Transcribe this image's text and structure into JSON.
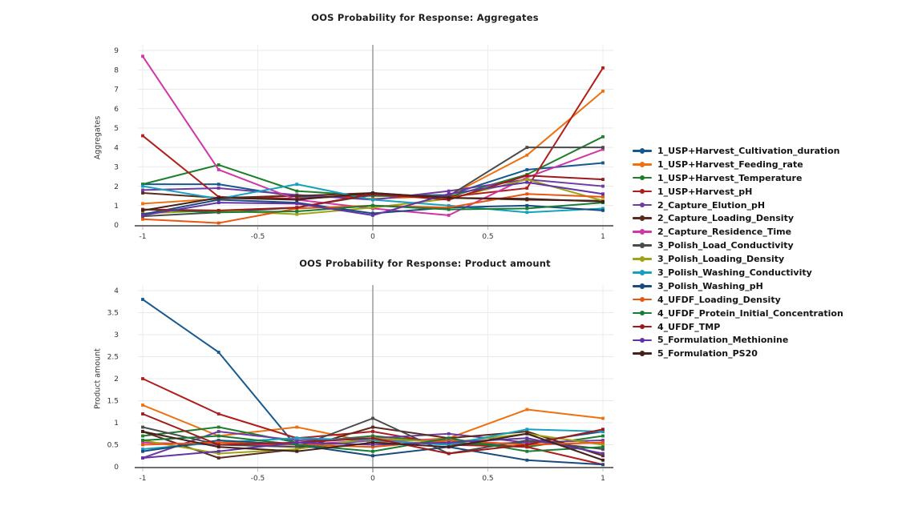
{
  "figure": {
    "background": "#ffffff",
    "grid_color": "#e9e9e9",
    "vgrid_color": "#ececec",
    "axis_color": "#5a5a5a",
    "zero_line_color": "#8c8c8c",
    "tick_text_color": "#333333"
  },
  "chart_data": [
    {
      "type": "line",
      "title": "OOS Probability for Response: Aggregates",
      "xlabel": "",
      "ylabel": "Aggregates",
      "grid": true,
      "legend_position": "right",
      "x": [
        -1,
        -0.67,
        -0.33,
        0,
        0.33,
        0.67,
        1
      ],
      "xticks": [
        -1,
        -0.5,
        0,
        0.5,
        1
      ],
      "xlim": [
        -1.05,
        1.05
      ],
      "ylim": [
        0,
        9
      ],
      "yticks": [
        0,
        1,
        2,
        3,
        4,
        5,
        6,
        7,
        8,
        9
      ],
      "series": [
        {
          "name": "1_USP+Harvest_Cultivation_duration",
          "color": "#17598e",
          "values": [
            2.1,
            2.1,
            1.45,
            1.5,
            1.55,
            2.85,
            3.2
          ]
        },
        {
          "name": "1_USP+Harvest_Feeding_rate",
          "color": "#ee7111",
          "values": [
            1.1,
            1.35,
            1.55,
            1.35,
            1.5,
            3.6,
            6.9
          ]
        },
        {
          "name": "1_USP+Harvest_Temperature",
          "color": "#1f7e2c",
          "values": [
            2.1,
            3.1,
            1.75,
            1.5,
            1.45,
            2.6,
            4.55
          ]
        },
        {
          "name": "1_USP+Harvest_pH",
          "color": "#b01d1d",
          "values": [
            4.6,
            1.45,
            1.35,
            1.55,
            1.45,
            1.9,
            8.1
          ]
        },
        {
          "name": "2_Capture_Elution_pH",
          "color": "#6e3ba2",
          "values": [
            1.8,
            1.9,
            1.55,
            1.3,
            1.75,
            2.35,
            2.0
          ]
        },
        {
          "name": "2_Capture_Loading_Density",
          "color": "#5a2a20",
          "values": [
            1.65,
            1.4,
            1.5,
            1.65,
            1.4,
            1.3,
            1.25
          ]
        },
        {
          "name": "2_Capture_Residence_Time",
          "color": "#d036a4",
          "values": [
            8.7,
            2.85,
            1.3,
            0.85,
            0.5,
            2.45,
            3.9
          ]
        },
        {
          "name": "3_Polish_Load_Conductivity",
          "color": "#4b4b4b",
          "values": [
            0.45,
            0.65,
            0.9,
            1.55,
            1.5,
            4.0,
            4.0
          ]
        },
        {
          "name": "3_Polish_Loading_Density",
          "color": "#9fa414",
          "values": [
            0.6,
            0.75,
            0.55,
            0.9,
            1.35,
            2.35,
            1.25
          ]
        },
        {
          "name": "3_Polish_Washing_Conductivity",
          "color": "#13a1bf",
          "values": [
            2.0,
            1.35,
            2.1,
            1.3,
            1.0,
            0.65,
            0.85
          ]
        },
        {
          "name": "3_Polish_Washing_pH",
          "color": "#1a4b7c",
          "values": [
            0.55,
            1.3,
            1.15,
            0.6,
            0.9,
            1.0,
            0.75
          ]
        },
        {
          "name": "4_UFDF_Loading_Density",
          "color": "#e9560e",
          "values": [
            0.3,
            0.1,
            0.85,
            1.0,
            0.9,
            1.6,
            1.45
          ]
        },
        {
          "name": "4_UFDF_Protein_Initial_Concentration",
          "color": "#177d36",
          "values": [
            0.8,
            0.65,
            0.7,
            1.0,
            0.8,
            0.85,
            1.15
          ]
        },
        {
          "name": "4_UFDF_TMP",
          "color": "#9e1a1a",
          "values": [
            0.8,
            0.75,
            0.9,
            1.6,
            1.3,
            2.55,
            2.35
          ]
        },
        {
          "name": "5_Formulation_Methionine",
          "color": "#6333a6",
          "values": [
            0.5,
            1.15,
            1.1,
            0.5,
            1.6,
            2.2,
            1.6
          ]
        },
        {
          "name": "5_Formulation_PS20",
          "color": "#44211a",
          "values": [
            0.75,
            1.4,
            1.3,
            1.65,
            1.4,
            1.35,
            1.2
          ]
        }
      ]
    },
    {
      "type": "line",
      "title": "OOS Probability for Response: Product amount",
      "xlabel": "",
      "ylabel": "Product amount",
      "grid": true,
      "legend_position": "right",
      "x": [
        -1,
        -0.67,
        -0.33,
        0,
        0.33,
        0.67,
        1
      ],
      "xticks": [
        -1,
        -0.5,
        0,
        0.5,
        1
      ],
      "xlim": [
        -1.05,
        1.05
      ],
      "ylim": [
        0,
        4
      ],
      "yticks": [
        0,
        0.5,
        1,
        1.5,
        2,
        2.5,
        3,
        3.5,
        4
      ],
      "series": [
        {
          "name": "1_USP+Harvest_Cultivation_duration",
          "color": "#17598e",
          "values": [
            3.8,
            2.6,
            0.45,
            0.6,
            0.5,
            0.55,
            0.8
          ]
        },
        {
          "name": "1_USP+Harvest_Feeding_rate",
          "color": "#ee7111",
          "values": [
            1.4,
            0.7,
            0.9,
            0.55,
            0.65,
            1.3,
            1.1
          ]
        },
        {
          "name": "1_USP+Harvest_Temperature",
          "color": "#1f7e2c",
          "values": [
            0.7,
            0.9,
            0.55,
            0.7,
            0.55,
            0.45,
            0.7
          ]
        },
        {
          "name": "1_USP+Harvest_pH",
          "color": "#b01d1d",
          "values": [
            2.0,
            1.2,
            0.65,
            0.8,
            0.5,
            0.45,
            0.05
          ]
        },
        {
          "name": "2_Capture_Elution_pH",
          "color": "#6e3ba2",
          "values": [
            0.2,
            0.8,
            0.6,
            0.65,
            0.75,
            0.55,
            0.6
          ]
        },
        {
          "name": "2_Capture_Loading_Density",
          "color": "#5a2a20",
          "values": [
            0.8,
            0.2,
            0.4,
            0.9,
            0.65,
            0.8,
            0.25
          ]
        },
        {
          "name": "2_Capture_Residence_Time",
          "color": "#d036a4",
          "values": [
            0.55,
            0.5,
            0.5,
            0.6,
            0.6,
            0.5,
            0.55
          ]
        },
        {
          "name": "3_Polish_Load_Conductivity",
          "color": "#4b4b4b",
          "values": [
            0.9,
            0.5,
            0.45,
            1.1,
            0.3,
            0.6,
            0.4
          ]
        },
        {
          "name": "3_Polish_Loading_Density",
          "color": "#9fa414",
          "values": [
            0.6,
            0.3,
            0.4,
            0.65,
            0.55,
            0.75,
            0.5
          ]
        },
        {
          "name": "3_Polish_Washing_Conductivity",
          "color": "#13a1bf",
          "values": [
            0.4,
            0.55,
            0.65,
            0.6,
            0.5,
            0.85,
            0.8
          ]
        },
        {
          "name": "3_Polish_Washing_pH",
          "color": "#1a4b7c",
          "values": [
            0.35,
            0.6,
            0.5,
            0.25,
            0.45,
            0.15,
            0.05
          ]
        },
        {
          "name": "4_UFDF_Loading_Density",
          "color": "#e9560e",
          "values": [
            0.5,
            0.55,
            0.5,
            0.45,
            0.6,
            0.5,
            0.55
          ]
        },
        {
          "name": "4_UFDF_Protein_Initial_Concentration",
          "color": "#177d36",
          "values": [
            0.6,
            0.7,
            0.5,
            0.35,
            0.65,
            0.35,
            0.45
          ]
        },
        {
          "name": "4_UFDF_TMP",
          "color": "#9e1a1a",
          "values": [
            1.2,
            0.5,
            0.55,
            0.65,
            0.3,
            0.5,
            0.85
          ]
        },
        {
          "name": "5_Formulation_Methionine",
          "color": "#6333a6",
          "values": [
            0.2,
            0.35,
            0.55,
            0.5,
            0.55,
            0.65,
            0.3
          ]
        },
        {
          "name": "5_Formulation_PS20",
          "color": "#44211a",
          "values": [
            0.8,
            0.45,
            0.35,
            0.55,
            0.45,
            0.75,
            0.15
          ]
        }
      ]
    }
  ],
  "legend": {
    "entries": [
      "1_USP+Harvest_Cultivation_duration",
      "1_USP+Harvest_Feeding_rate",
      "1_USP+Harvest_Temperature",
      "1_USP+Harvest_pH",
      "2_Capture_Elution_pH",
      "2_Capture_Loading_Density",
      "2_Capture_Residence_Time",
      "3_Polish_Load_Conductivity",
      "3_Polish_Loading_Density",
      "3_Polish_Washing_Conductivity",
      "3_Polish_Washing_pH",
      "4_UFDF_Loading_Density",
      "4_UFDF_Protein_Initial_Concentration",
      "4_UFDF_TMP",
      "5_Formulation_Methionine",
      "5_Formulation_PS20"
    ]
  }
}
